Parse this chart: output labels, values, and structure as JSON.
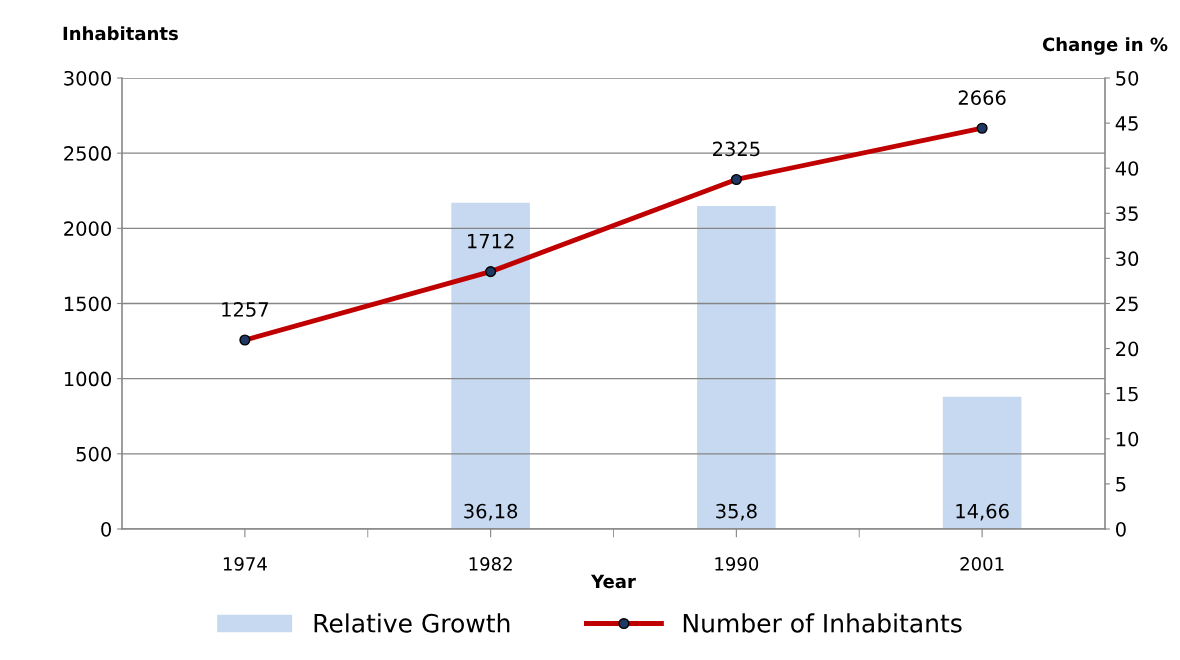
{
  "chart_data": {
    "type": "bar",
    "xlabel": "Year",
    "ylabel": "Inhabitants",
    "y2label": "Change in %",
    "categories": [
      "1974",
      "1982",
      "1990",
      "2001"
    ],
    "series": [
      {
        "name": "Relative Growth",
        "axis": "y2",
        "color": "#c6d9f0",
        "values": [
          null,
          36.18,
          35.8,
          14.66
        ],
        "value_labels": [
          null,
          "36,18",
          "35,8",
          "14,66"
        ]
      },
      {
        "name": "Number of Inhabitants",
        "type": "line",
        "color": "#c00000",
        "values": [
          1257,
          1712,
          2325,
          2666
        ],
        "value_labels": [
          "1257",
          "1712",
          "2325",
          "2666"
        ],
        "marker": "circle",
        "line_style": "solid"
      }
    ],
    "ylim": [
      0,
      3000
    ],
    "yticks": [
      0,
      500,
      1000,
      1500,
      2000,
      2500,
      3000
    ],
    "y2lim": [
      0,
      50
    ],
    "y2ticks": [
      0,
      5,
      10,
      15,
      20,
      25,
      30,
      35,
      40,
      45,
      50
    ],
    "grid": "y",
    "legend": "bottom"
  }
}
